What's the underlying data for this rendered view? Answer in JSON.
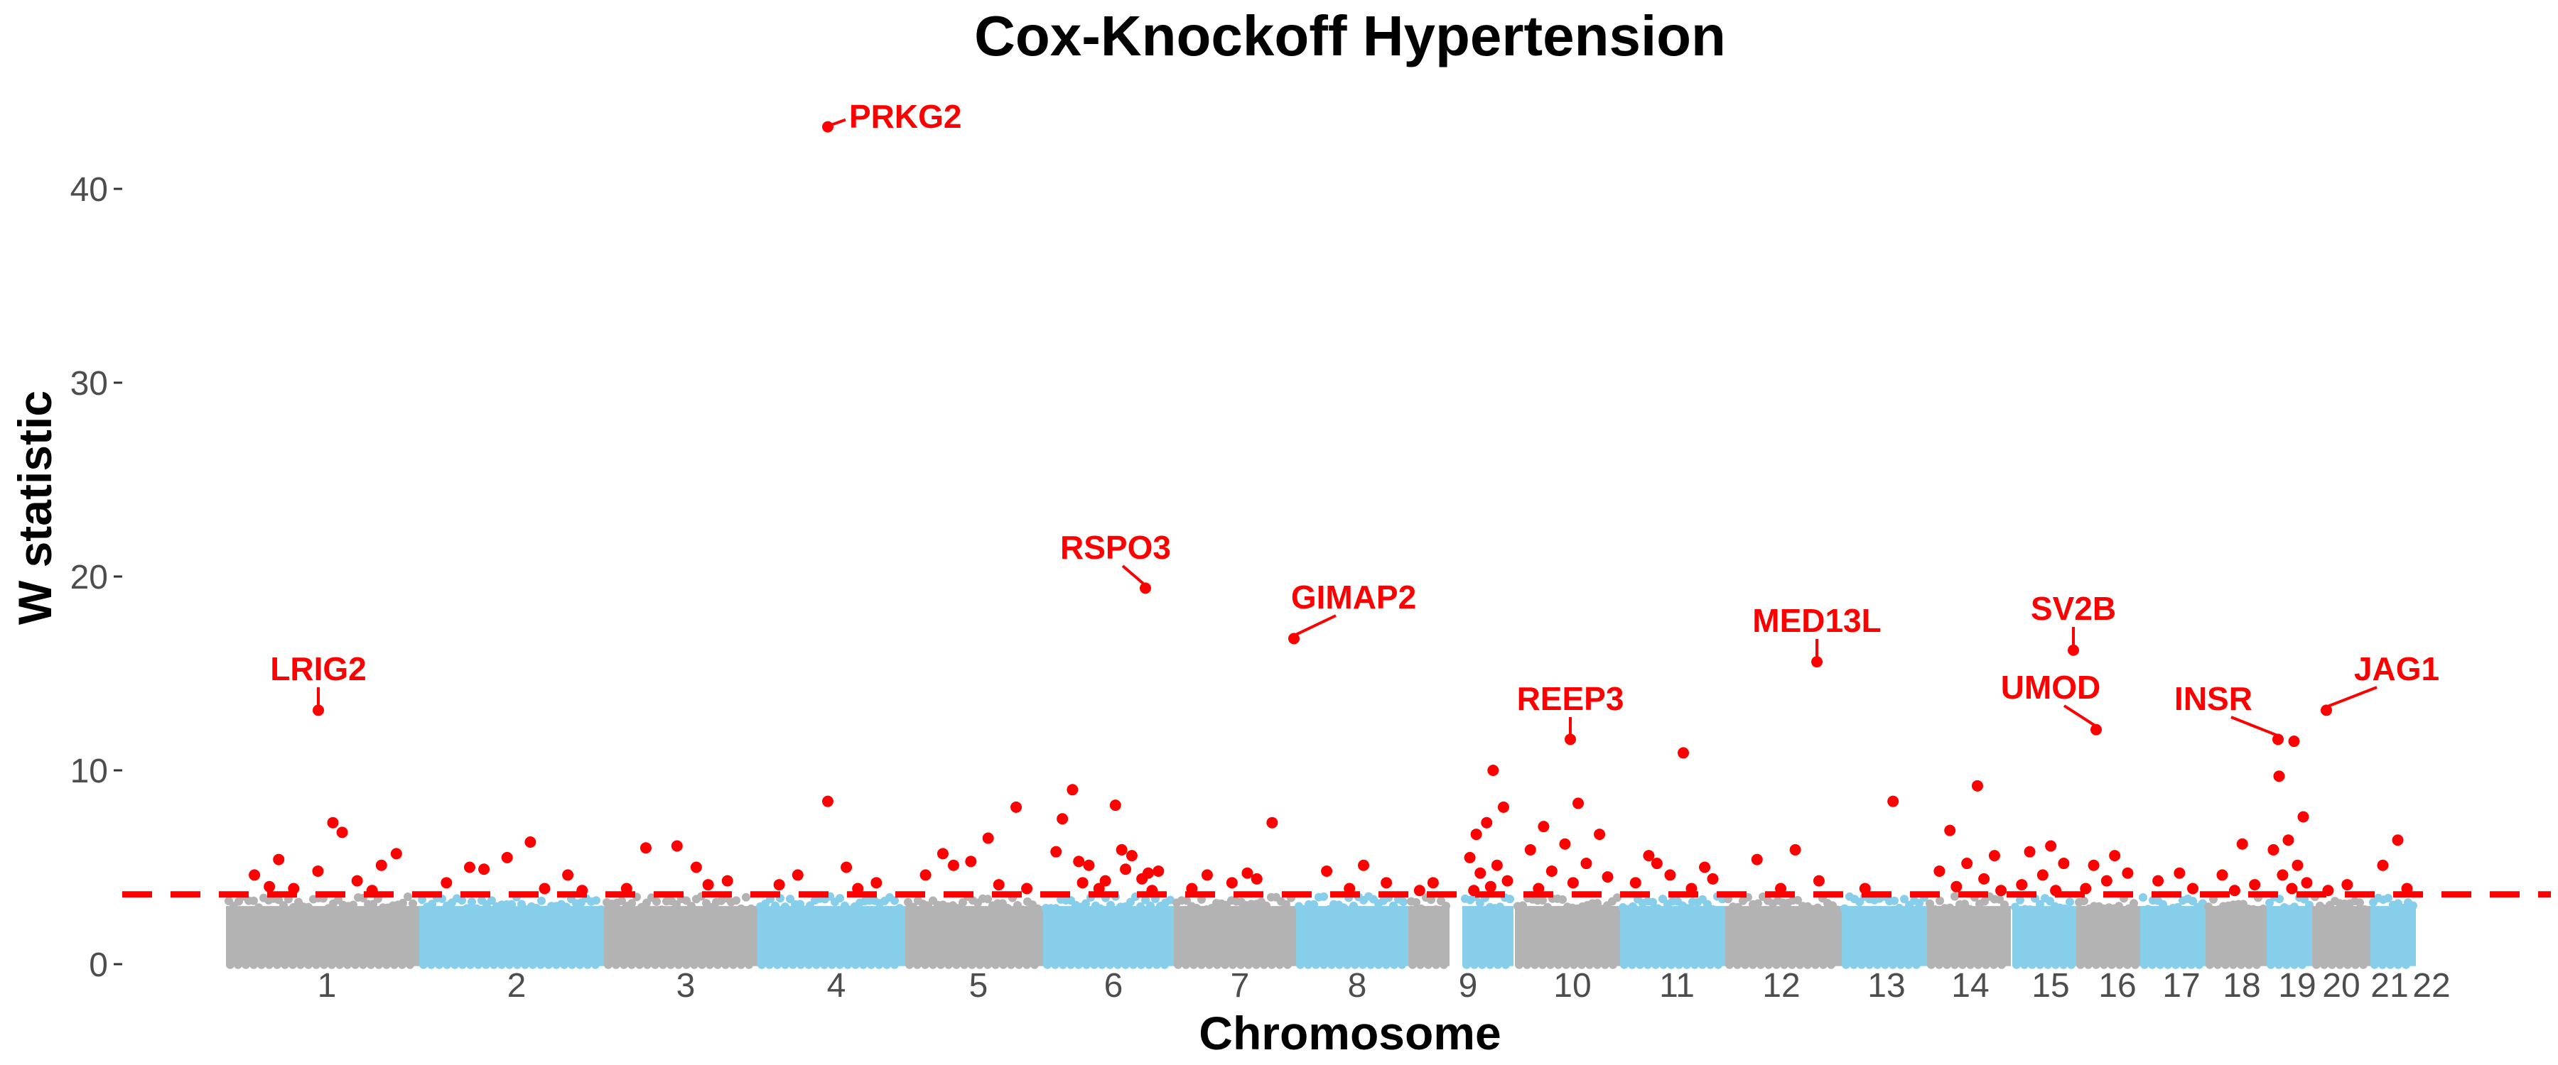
{
  "chart_data": {
    "type": "scatter",
    "title": "Cox-Knockoff Hypertension",
    "xlabel": "Chromosome",
    "ylabel": "W statistic",
    "ylim": [
      -0.3,
      44
    ],
    "y_ticks": [
      0,
      10,
      20,
      30,
      40
    ],
    "threshold": 3.6,
    "grid": false,
    "legend": "none",
    "colors": {
      "even_chromosome": "#87CEEB",
      "odd_chromosome": "#B3B3B3",
      "significant": "#FF0000",
      "threshold_line": "#FF0000"
    },
    "chromosomes": [
      {
        "label": "1",
        "x": 1
      },
      {
        "label": "2",
        "x": 2
      },
      {
        "label": "3",
        "x": 3
      },
      {
        "label": "4",
        "x": 4
      },
      {
        "label": "5",
        "x": 5
      },
      {
        "label": "6",
        "x": 6
      },
      {
        "label": "7",
        "x": 7
      },
      {
        "label": "8",
        "x": 8
      },
      {
        "label": "9",
        "x": 9
      },
      {
        "label": "10",
        "x": 10
      },
      {
        "label": "11",
        "x": 11
      },
      {
        "label": "12",
        "x": 12
      },
      {
        "label": "13",
        "x": 13
      },
      {
        "label": "14",
        "x": 14
      },
      {
        "label": "15",
        "x": 15
      },
      {
        "label": "16",
        "x": 16
      },
      {
        "label": "17",
        "x": 17
      },
      {
        "label": "18",
        "x": 18
      },
      {
        "label": "19",
        "x": 19
      },
      {
        "label": "20",
        "x": 20
      },
      {
        "label": "21",
        "x": 21
      },
      {
        "label": "22",
        "x": 22
      }
    ],
    "annotated_genes": [
      {
        "gene": "PRKG2",
        "chr": 4,
        "w": 43.2
      },
      {
        "gene": "RSPO3",
        "chr": 6,
        "w": 19.4
      },
      {
        "gene": "GIMAP2",
        "chr": 7,
        "w": 16.8
      },
      {
        "gene": "MED13L",
        "chr": 12,
        "w": 15.6
      },
      {
        "gene": "SV2B",
        "chr": 15,
        "w": 16.2
      },
      {
        "gene": "LRIG2",
        "chr": 1,
        "w": 13.1
      },
      {
        "gene": "JAG1",
        "chr": 20,
        "w": 13.1
      },
      {
        "gene": "UMOD",
        "chr": 16,
        "w": 12.1
      },
      {
        "gene": "INSR",
        "chr": 19,
        "w": 11.6
      },
      {
        "gene": "REEP3",
        "chr": 10,
        "w": 11.6
      }
    ],
    "other_significant_points": [
      {
        "chr": 1,
        "w": 6.8
      },
      {
        "chr": 1,
        "w": 5.4
      },
      {
        "chr": 1,
        "w": 5.1
      },
      {
        "chr": 1,
        "w": 4.8
      },
      {
        "chr": 1,
        "w": 4.6
      },
      {
        "chr": 1,
        "w": 4.3
      },
      {
        "chr": 1,
        "w": 3.9
      },
      {
        "chr": 1,
        "w": 5.7
      },
      {
        "chr": 1,
        "w": 7.3
      },
      {
        "chr": 1,
        "w": 4.0
      },
      {
        "chr": 1,
        "w": 3.8
      },
      {
        "chr": 2,
        "w": 6.3
      },
      {
        "chr": 2,
        "w": 5.0
      },
      {
        "chr": 2,
        "w": 4.6
      },
      {
        "chr": 2,
        "w": 5.5
      },
      {
        "chr": 2,
        "w": 4.2
      },
      {
        "chr": 2,
        "w": 3.9
      },
      {
        "chr": 2,
        "w": 4.9
      },
      {
        "chr": 2,
        "w": 3.8
      },
      {
        "chr": 3,
        "w": 5.0
      },
      {
        "chr": 3,
        "w": 6.0
      },
      {
        "chr": 3,
        "w": 4.3
      },
      {
        "chr": 3,
        "w": 6.1
      },
      {
        "chr": 3,
        "w": 3.9
      },
      {
        "chr": 3,
        "w": 4.1
      },
      {
        "chr": 4,
        "w": 5.0
      },
      {
        "chr": 4,
        "w": 4.6
      },
      {
        "chr": 4,
        "w": 4.2
      },
      {
        "chr": 4,
        "w": 8.4
      },
      {
        "chr": 4,
        "w": 4.1
      },
      {
        "chr": 4,
        "w": 3.9
      },
      {
        "chr": 5,
        "w": 6.5
      },
      {
        "chr": 5,
        "w": 5.7
      },
      {
        "chr": 5,
        "w": 8.1
      },
      {
        "chr": 5,
        "w": 5.3
      },
      {
        "chr": 5,
        "w": 4.6
      },
      {
        "chr": 5,
        "w": 4.1
      },
      {
        "chr": 5,
        "w": 5.1
      },
      {
        "chr": 5,
        "w": 3.9
      },
      {
        "chr": 6,
        "w": 5.9
      },
      {
        "chr": 6,
        "w": 5.3
      },
      {
        "chr": 6,
        "w": 4.7
      },
      {
        "chr": 6,
        "w": 4.3
      },
      {
        "chr": 6,
        "w": 7.5
      },
      {
        "chr": 6,
        "w": 5.6
      },
      {
        "chr": 6,
        "w": 5.1
      },
      {
        "chr": 6,
        "w": 4.8
      },
      {
        "chr": 6,
        "w": 8.2
      },
      {
        "chr": 6,
        "w": 9.0
      },
      {
        "chr": 6,
        "w": 4.4
      },
      {
        "chr": 6,
        "w": 3.9
      },
      {
        "chr": 6,
        "w": 5.8
      },
      {
        "chr": 6,
        "w": 4.9
      },
      {
        "chr": 6,
        "w": 4.2
      },
      {
        "chr": 6,
        "w": 3.8
      },
      {
        "chr": 7,
        "w": 4.7
      },
      {
        "chr": 7,
        "w": 4.6
      },
      {
        "chr": 7,
        "w": 7.3
      },
      {
        "chr": 7,
        "w": 4.2
      },
      {
        "chr": 7,
        "w": 3.9
      },
      {
        "chr": 7,
        "w": 4.4
      },
      {
        "chr": 8,
        "w": 5.1
      },
      {
        "chr": 8,
        "w": 4.8
      },
      {
        "chr": 8,
        "w": 4.2
      },
      {
        "chr": 8,
        "w": 3.9
      },
      {
        "chr": 9,
        "w": 4.2
      },
      {
        "chr": 9,
        "w": 3.8
      },
      {
        "chr": 10,
        "w": 10.0
      },
      {
        "chr": 10,
        "w": 6.7
      },
      {
        "chr": 10,
        "w": 8.1
      },
      {
        "chr": 10,
        "w": 7.3
      },
      {
        "chr": 10,
        "w": 5.5
      },
      {
        "chr": 10,
        "w": 5.1
      },
      {
        "chr": 10,
        "w": 4.7
      },
      {
        "chr": 10,
        "w": 4.3
      },
      {
        "chr": 10,
        "w": 4.0
      },
      {
        "chr": 10,
        "w": 3.8
      },
      {
        "chr": 11,
        "w": 8.3
      },
      {
        "chr": 11,
        "w": 7.1
      },
      {
        "chr": 11,
        "w": 6.7
      },
      {
        "chr": 11,
        "w": 6.2
      },
      {
        "chr": 11,
        "w": 5.9
      },
      {
        "chr": 11,
        "w": 5.2
      },
      {
        "chr": 11,
        "w": 4.8
      },
      {
        "chr": 11,
        "w": 4.5
      },
      {
        "chr": 11,
        "w": 4.2
      },
      {
        "chr": 11,
        "w": 3.9
      },
      {
        "chr": 12,
        "w": 10.9
      },
      {
        "chr": 12,
        "w": 5.6
      },
      {
        "chr": 12,
        "w": 5.0
      },
      {
        "chr": 12,
        "w": 4.6
      },
      {
        "chr": 12,
        "w": 4.2
      },
      {
        "chr": 12,
        "w": 3.9
      },
      {
        "chr": 12,
        "w": 5.2
      },
      {
        "chr": 12,
        "w": 4.4
      },
      {
        "chr": 13,
        "w": 5.9
      },
      {
        "chr": 13,
        "w": 5.4
      },
      {
        "chr": 13,
        "w": 4.3
      },
      {
        "chr": 13,
        "w": 3.9
      },
      {
        "chr": 14,
        "w": 8.4
      },
      {
        "chr": 14,
        "w": 3.9
      },
      {
        "chr": 15,
        "w": 9.2
      },
      {
        "chr": 15,
        "w": 6.9
      },
      {
        "chr": 15,
        "w": 5.6
      },
      {
        "chr": 15,
        "w": 5.2
      },
      {
        "chr": 15,
        "w": 4.8
      },
      {
        "chr": 15,
        "w": 4.4
      },
      {
        "chr": 15,
        "w": 4.0
      },
      {
        "chr": 15,
        "w": 3.8
      },
      {
        "chr": 16,
        "w": 6.1
      },
      {
        "chr": 16,
        "w": 5.8
      },
      {
        "chr": 16,
        "w": 5.2
      },
      {
        "chr": 16,
        "w": 4.6
      },
      {
        "chr": 16,
        "w": 4.1
      },
      {
        "chr": 16,
        "w": 3.8
      },
      {
        "chr": 17,
        "w": 5.6
      },
      {
        "chr": 17,
        "w": 5.1
      },
      {
        "chr": 17,
        "w": 4.7
      },
      {
        "chr": 17,
        "w": 4.3
      },
      {
        "chr": 17,
        "w": 3.9
      },
      {
        "chr": 18,
        "w": 4.7
      },
      {
        "chr": 18,
        "w": 4.3
      },
      {
        "chr": 18,
        "w": 3.9
      },
      {
        "chr": 19,
        "w": 6.2
      },
      {
        "chr": 19,
        "w": 4.6
      },
      {
        "chr": 19,
        "w": 4.1
      },
      {
        "chr": 19,
        "w": 3.8
      },
      {
        "chr": 20,
        "w": 11.5
      },
      {
        "chr": 20,
        "w": 9.7
      },
      {
        "chr": 20,
        "w": 7.6
      },
      {
        "chr": 20,
        "w": 6.4
      },
      {
        "chr": 20,
        "w": 5.9
      },
      {
        "chr": 20,
        "w": 5.1
      },
      {
        "chr": 20,
        "w": 4.6
      },
      {
        "chr": 20,
        "w": 4.2
      },
      {
        "chr": 20,
        "w": 3.9
      },
      {
        "chr": 21,
        "w": 4.1
      },
      {
        "chr": 21,
        "w": 3.8
      },
      {
        "chr": 22,
        "w": 6.4
      },
      {
        "chr": 22,
        "w": 5.1
      },
      {
        "chr": 22,
        "w": 3.9
      }
    ]
  }
}
